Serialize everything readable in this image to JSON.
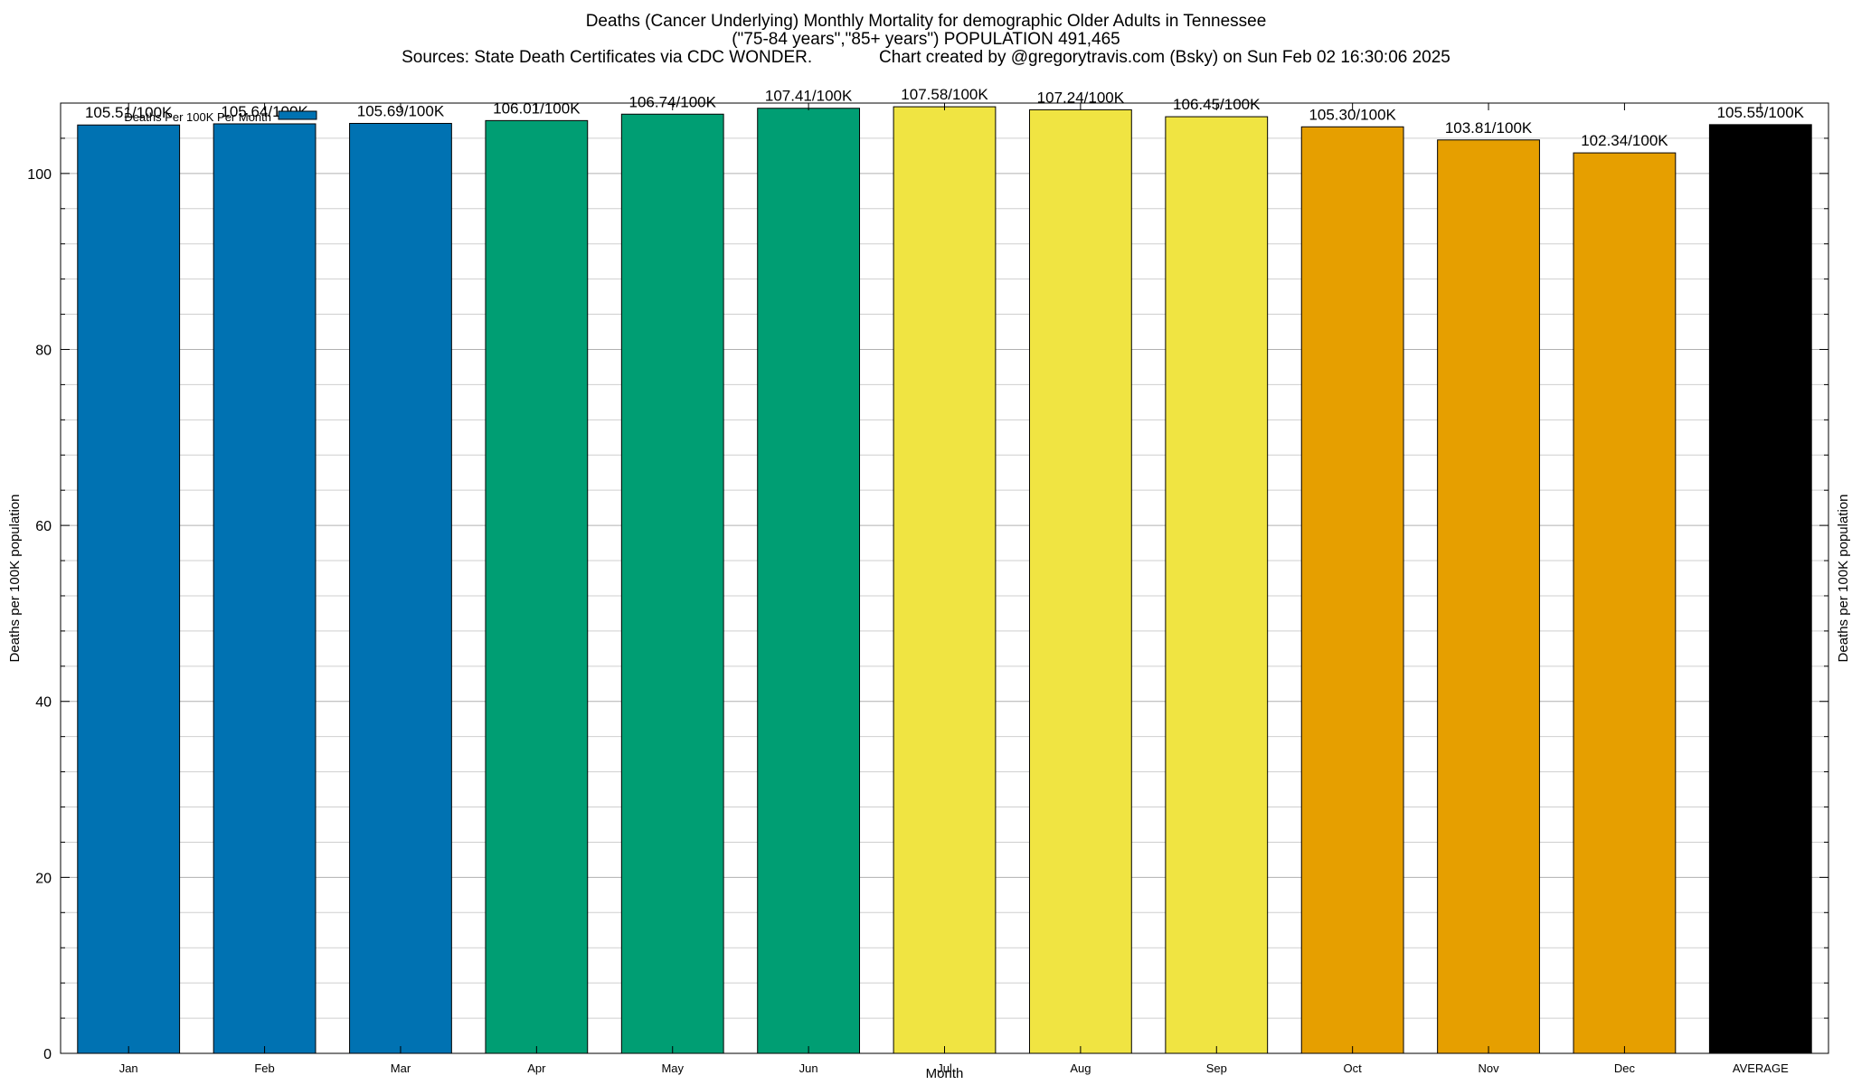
{
  "title_lines": [
    "Deaths (Cancer Underlying) Monthly Mortality for demographic Older Adults in Tennessee",
    "(\"75-84 years\",\"85+ years\") POPULATION 491,465",
    "Sources: State Death Certificates via CDC WONDER.              Chart created by @gregorytravis.com (Bsky) on Sun Feb 02 16:30:06 2025"
  ],
  "chart_data": {
    "type": "bar",
    "title": "Deaths (Cancer Underlying) Monthly Mortality for demographic Older Adults in Tennessee",
    "xlabel": "Month",
    "ylabel": "Deaths per 100K population",
    "y2label": "Deaths per 100K population",
    "ylim": [
      0,
      108
    ],
    "yticks": [
      0,
      20,
      40,
      60,
      80,
      100
    ],
    "grid": true,
    "legend": {
      "placement": "top-left",
      "entries": [
        {
          "label": "Deaths Per 100K Per Month",
          "color": "#0072b2"
        }
      ]
    },
    "categories": [
      "Jan",
      "Feb",
      "Mar",
      "Apr",
      "May",
      "Jun",
      "Jul",
      "Aug",
      "Sep",
      "Oct",
      "Nov",
      "Dec",
      "AVERAGE"
    ],
    "values": [
      105.51,
      105.64,
      105.69,
      106.01,
      106.74,
      107.41,
      107.58,
      107.24,
      106.45,
      105.3,
      103.81,
      102.34,
      105.55
    ],
    "labels": [
      "105.51/100K",
      "105.64/100K",
      "105.69/100K",
      "106.01/100K",
      "106.74/100K",
      "107.41/100K",
      "107.58/100K",
      "107.24/100K",
      "106.45/100K",
      "105.30/100K",
      "103.81/100K",
      "102.34/100K",
      "105.55/100K"
    ],
    "colors": [
      "#0072b2",
      "#0072b2",
      "#0072b2",
      "#009e73",
      "#009e73",
      "#009e73",
      "#f0e442",
      "#f0e442",
      "#f0e442",
      "#e69f00",
      "#e69f00",
      "#e69f00",
      "#000000"
    ]
  }
}
